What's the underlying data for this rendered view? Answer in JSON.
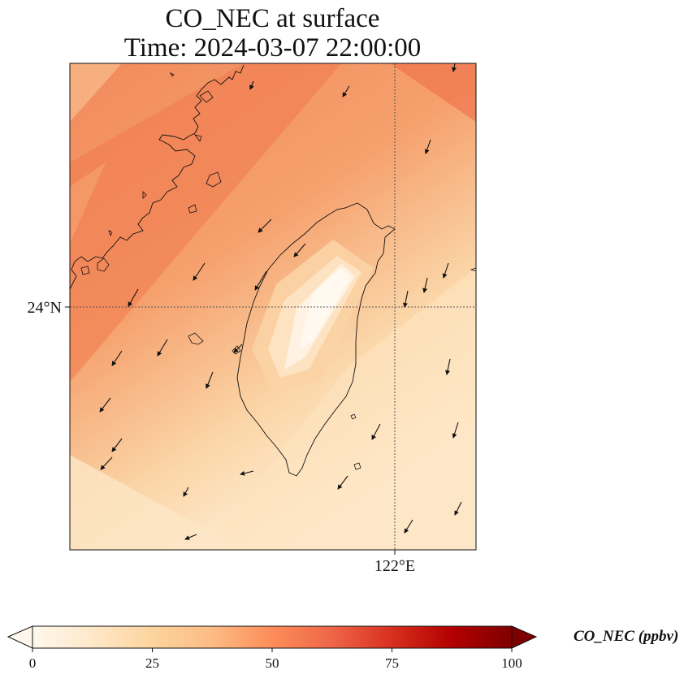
{
  "title": {
    "line1": "CO_NEC at surface",
    "line2": "Time: 2024-03-07 22:00:00"
  },
  "map": {
    "region": "Taiwan Strait",
    "gridlines": {
      "lon_label": "122°E",
      "lat_label": "24°N",
      "style": "dotted"
    },
    "field_range_ppbv": [
      0,
      100
    ],
    "low_concentration_core": "over central Taiwan mountains (~0-10 ppbv)",
    "high_concentration_area": "northwest strait and China coast (~40-50 ppbv)",
    "wind_arrows": "predominantly northeasterly, pointing southwest"
  },
  "colorbar": {
    "label": "CO_NEC (ppbv)",
    "ticks": [
      "0",
      "25",
      "50",
      "75",
      "100"
    ],
    "colormap": "OrRd",
    "extend": "both",
    "colors": [
      "#fff7ec",
      "#fee8c8",
      "#fdd49e",
      "#fdbb84",
      "#fc8d59",
      "#ef6548",
      "#d7301f",
      "#b30000",
      "#7f0000"
    ]
  }
}
